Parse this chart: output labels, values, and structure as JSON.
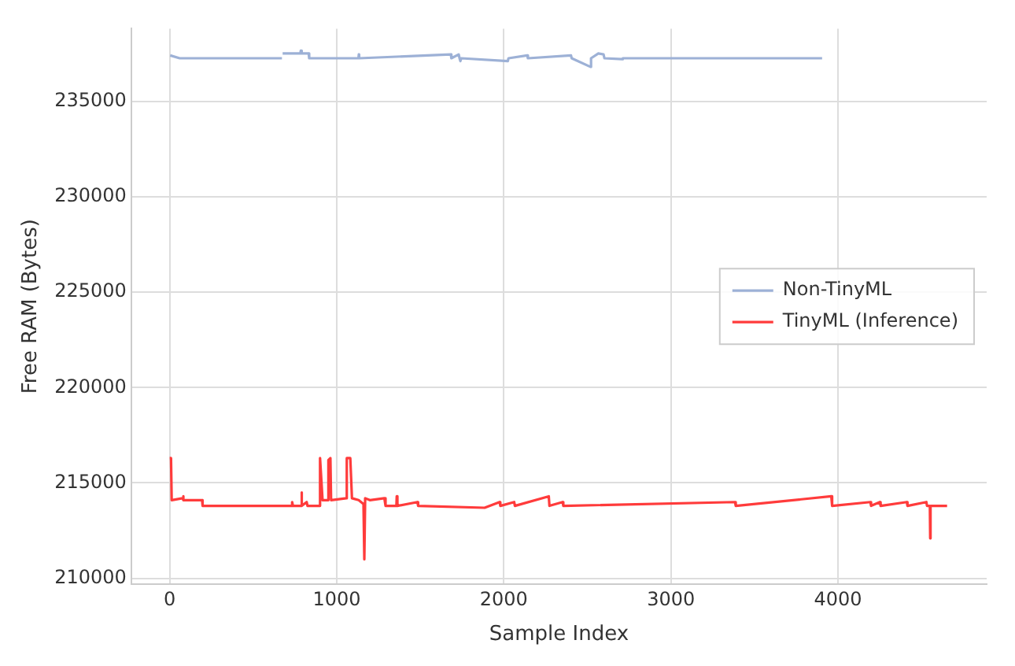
{
  "chart_data": {
    "type": "line",
    "xlabel": "Sample Index",
    "ylabel": "Free RAM (Bytes)",
    "xlim": [
      -230,
      4890
    ],
    "xticks": [
      0,
      1000,
      2000,
      3000,
      4000
    ],
    "ylim": [
      209700,
      238800
    ],
    "yticks": [
      210000,
      215000,
      220000,
      225000,
      230000,
      235000
    ],
    "grid": true,
    "legend": "right",
    "line_style": "solid",
    "series": [
      {
        "name": "Non-TinyML",
        "color": "#9db1d6",
        "x": [
          3,
          60,
          672,
          674,
          676,
          782,
          785,
          790,
          832,
          835,
          1130,
          1132,
          1134,
          1683,
          1686,
          1730,
          1735,
          1740,
          1745,
          2024,
          2028,
          2140,
          2144,
          2402,
          2406,
          2518,
          2522,
          2566,
          2597,
          2602,
          2708,
          2712,
          3905
        ],
        "values": [
          237400,
          237250,
          237250,
          null,
          237500,
          237500,
          237650,
          237500,
          237500,
          237250,
          237250,
          237450,
          237250,
          237450,
          237250,
          237450,
          237250,
          237100,
          237250,
          237100,
          237250,
          237400,
          237250,
          237400,
          237250,
          236800,
          237250,
          237500,
          237450,
          237250,
          237200,
          237250,
          237250
        ]
      },
      {
        "name": "TinyML (Inference)",
        "color": "#ff3b3b",
        "x": [
          0,
          8,
          12,
          77,
          80,
          84,
          194,
          197,
          730,
          733,
          738,
          787,
          789,
          792,
          820,
          825,
          897,
          900,
          915,
          947,
          950,
          962,
          966,
          1058,
          1060,
          1081,
          1091,
          1131,
          1160,
          1165,
          1170,
          1198,
          1285,
          1292,
          1357,
          1359,
          1363,
          1483,
          1487,
          1885,
          1975,
          1979,
          2062,
          2066,
          2269,
          2273,
          2352,
          2356,
          3384,
          3388,
          3960,
          3965,
          4194,
          4198,
          4251,
          4255,
          4412,
          4416,
          4529,
          4533,
          4550,
          4552,
          4554,
          4653
        ],
        "values": [
          216300,
          216300,
          214100,
          214200,
          214300,
          214100,
          214100,
          213800,
          213800,
          214000,
          213800,
          213800,
          214500,
          213800,
          214000,
          213800,
          213800,
          216300,
          214100,
          214100,
          216200,
          216300,
          214100,
          214200,
          216300,
          216300,
          214200,
          214100,
          213900,
          211000,
          214200,
          214100,
          214200,
          213800,
          213800,
          214300,
          213800,
          214000,
          213800,
          213700,
          214000,
          213800,
          214000,
          213800,
          214300,
          213800,
          214000,
          213800,
          214000,
          213800,
          214300,
          213800,
          214000,
          213800,
          214000,
          213800,
          214000,
          213800,
          214000,
          213800,
          213800,
          212100,
          213800,
          213800
        ]
      }
    ]
  }
}
